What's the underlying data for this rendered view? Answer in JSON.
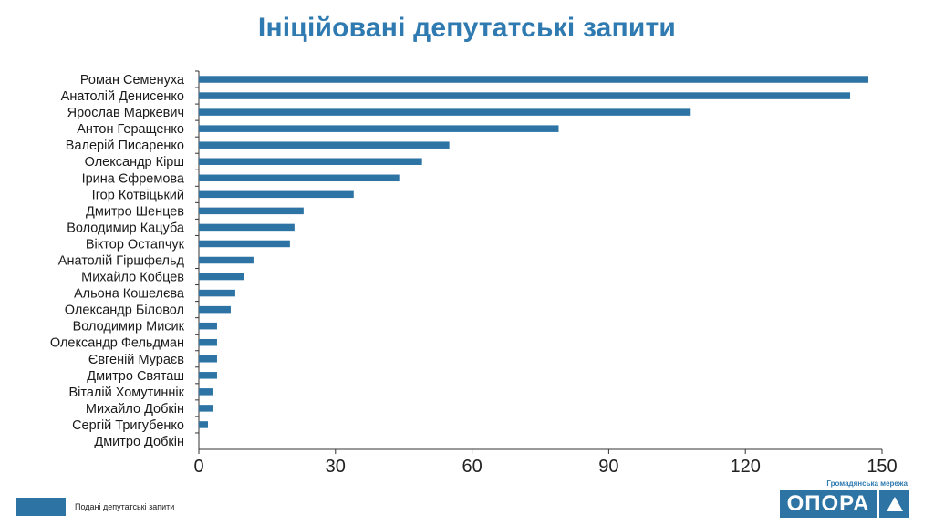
{
  "title": "Ініційовані депутатські запити",
  "legend": {
    "label": "Подані депутатські запити",
    "color": "#2d74a5"
  },
  "brand": {
    "tagline": "Громадянська мережа",
    "name": "ОПОРА",
    "icon": "triangle-up-icon"
  },
  "chart_data": {
    "type": "bar",
    "orientation": "horizontal",
    "categories": [
      "Роман Семенуха",
      "Анатолій Денисенко",
      "Ярослав Маркевич",
      "Антон Геращенко",
      "Валерій Писаренко",
      "Олександр Кірш",
      "Ірина Єфремова",
      "Ігор Котвіцький",
      "Дмитро Шенцев",
      "Володимир Кацуба",
      "Віктор Остапчук",
      "Анатолій Гіршфельд",
      "Михайло Кобцев",
      "Альона Кошелєва",
      "Олександр Біловол",
      "Володимир Мисик",
      "Олександр Фельдман",
      "Євгеній Мураєв",
      "Дмитро Святаш",
      "Віталій Хомутиннік",
      "Михайло Добкін",
      "Сергій Тригубенко",
      "Дмитро Добкін"
    ],
    "series": [
      {
        "name": "Подані депутатські запити",
        "color": "#2d74a5",
        "values": [
          147,
          143,
          108,
          79,
          55,
          49,
          44,
          34,
          23,
          21,
          20,
          12,
          10,
          8,
          7,
          4,
          4,
          4,
          4,
          3,
          3,
          2,
          0
        ]
      }
    ],
    "xlim": [
      0,
      150
    ],
    "xticks": [
      0,
      30,
      60,
      90,
      120,
      150
    ],
    "grid": false,
    "legend_position": "bottom-left"
  }
}
